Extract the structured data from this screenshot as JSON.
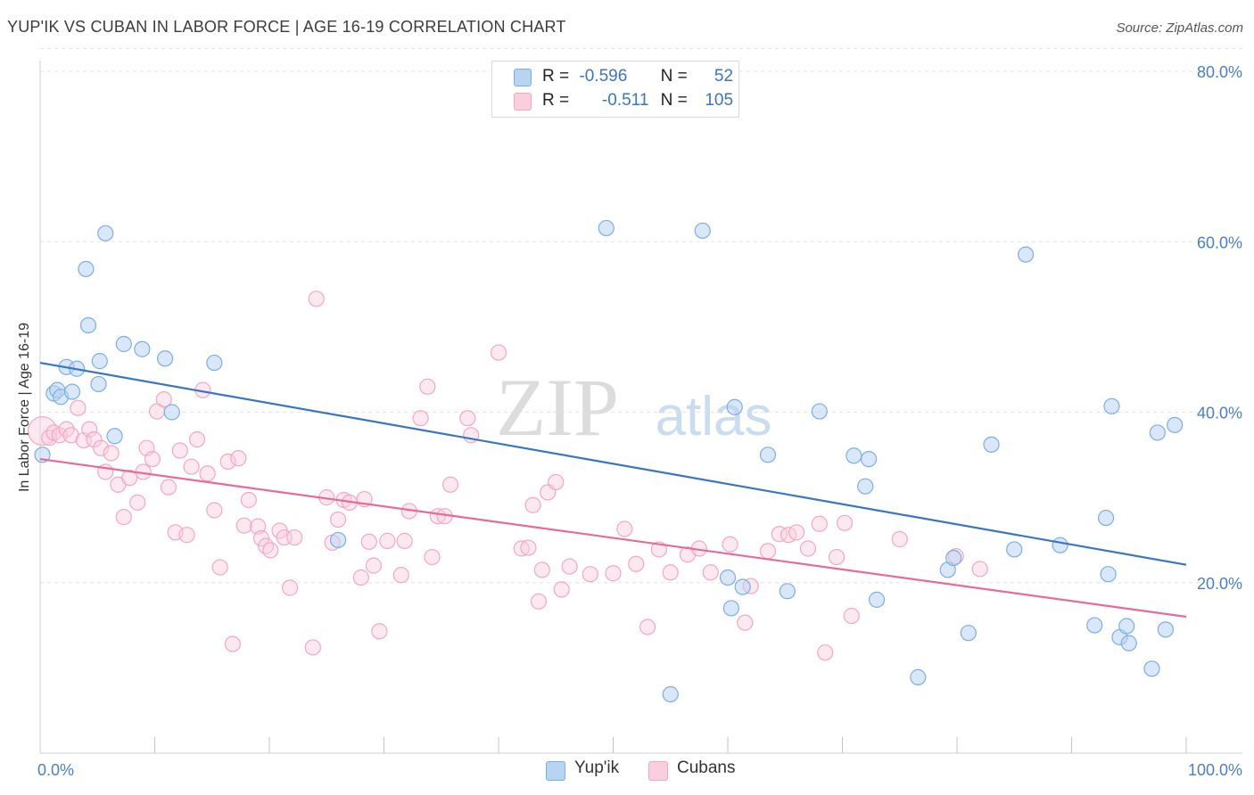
{
  "title": "YUP'IK VS CUBAN IN LABOR FORCE | AGE 16-19 CORRELATION CHART",
  "source": "Source: ZipAtlas.com",
  "watermark": {
    "zip": "ZIP",
    "atlas": "atlas"
  },
  "legend": {
    "r_label": "R =",
    "n_label": "N =",
    "yupik": {
      "r": "-0.596",
      "n": "52"
    },
    "cubans": {
      "r": "-0.511",
      "n": "105"
    }
  },
  "chart_data": {
    "type": "scatter",
    "title": "YUP'IK VS CUBAN IN LABOR FORCE | AGE 16-19 CORRELATION CHART",
    "xlabel": "",
    "ylabel": "In Labor Force | Age 16-19",
    "xlim": [
      0,
      100
    ],
    "ylim": [
      0,
      83
    ],
    "x_tick_labels": [
      "0.0%",
      "100.0%"
    ],
    "y_ticks": [
      20,
      40,
      60,
      80
    ],
    "y_tick_labels": [
      "20.0%",
      "40.0%",
      "60.0%",
      "80.0%"
    ],
    "grid": "horizontal dashed",
    "legend_position": "top-center and bottom-center",
    "colors": {
      "yupik": "#7aaee8",
      "cubans": "#f4a6c0",
      "yupik_line": "#3a75c4",
      "cubans_line": "#e76a9a",
      "axis_text": "#4a7fc8"
    },
    "series": [
      {
        "name": "Yup'ik",
        "trend": {
          "x": [
            0,
            100
          ],
          "y": [
            45.8,
            22.1
          ]
        },
        "points": [
          [
            0.2,
            35.0
          ],
          [
            1.2,
            42.2
          ],
          [
            1.5,
            42.6
          ],
          [
            1.8,
            41.8
          ],
          [
            2.3,
            45.3
          ],
          [
            2.8,
            42.4
          ],
          [
            3.2,
            45.1
          ],
          [
            4.0,
            56.8
          ],
          [
            4.2,
            50.2
          ],
          [
            5.1,
            43.3
          ],
          [
            5.2,
            46.0
          ],
          [
            5.7,
            61.0
          ],
          [
            6.5,
            37.2
          ],
          [
            7.3,
            48.0
          ],
          [
            8.9,
            47.4
          ],
          [
            10.9,
            46.3
          ],
          [
            11.5,
            40.0
          ],
          [
            15.2,
            45.8
          ],
          [
            26.0,
            25.0
          ],
          [
            49.4,
            61.6
          ],
          [
            55.0,
            6.9
          ],
          [
            57.8,
            61.3
          ],
          [
            60.0,
            20.6
          ],
          [
            60.3,
            17.0
          ],
          [
            60.6,
            40.6
          ],
          [
            61.3,
            19.5
          ],
          [
            63.5,
            35.0
          ],
          [
            65.2,
            19.0
          ],
          [
            68.0,
            40.1
          ],
          [
            71.0,
            34.9
          ],
          [
            72.0,
            31.3
          ],
          [
            72.3,
            34.5
          ],
          [
            73.0,
            18.0
          ],
          [
            76.6,
            8.9
          ],
          [
            79.2,
            21.5
          ],
          [
            79.7,
            22.9
          ],
          [
            81.0,
            14.1
          ],
          [
            83.0,
            36.2
          ],
          [
            85.0,
            23.9
          ],
          [
            86.0,
            58.5
          ],
          [
            89.0,
            24.4
          ],
          [
            92.0,
            15.0
          ],
          [
            93.0,
            27.6
          ],
          [
            93.2,
            21.0
          ],
          [
            93.5,
            40.7
          ],
          [
            94.2,
            13.6
          ],
          [
            94.8,
            14.9
          ],
          [
            95.0,
            12.9
          ],
          [
            97.0,
            9.9
          ],
          [
            97.5,
            37.6
          ],
          [
            98.2,
            14.5
          ],
          [
            99.0,
            38.5
          ]
        ]
      },
      {
        "name": "Cubans",
        "trend": {
          "x": [
            0,
            100
          ],
          "y": [
            34.5,
            16.0
          ]
        },
        "points": [
          [
            0.2,
            37.8
          ],
          [
            0.8,
            37.0
          ],
          [
            1.2,
            37.6
          ],
          [
            1.7,
            37.3
          ],
          [
            2.3,
            38.0
          ],
          [
            2.7,
            37.3
          ],
          [
            3.3,
            40.5
          ],
          [
            3.8,
            36.7
          ],
          [
            4.3,
            38.0
          ],
          [
            4.7,
            36.8
          ],
          [
            5.3,
            35.8
          ],
          [
            5.7,
            33.0
          ],
          [
            6.2,
            35.2
          ],
          [
            6.8,
            31.5
          ],
          [
            7.3,
            27.7
          ],
          [
            7.8,
            32.3
          ],
          [
            8.5,
            29.4
          ],
          [
            9.0,
            33.0
          ],
          [
            9.3,
            35.8
          ],
          [
            9.8,
            34.5
          ],
          [
            10.2,
            40.1
          ],
          [
            10.8,
            41.5
          ],
          [
            11.2,
            31.2
          ],
          [
            11.8,
            25.9
          ],
          [
            12.2,
            35.5
          ],
          [
            12.8,
            25.6
          ],
          [
            13.2,
            33.6
          ],
          [
            13.7,
            36.8
          ],
          [
            14.2,
            42.6
          ],
          [
            14.6,
            32.8
          ],
          [
            15.2,
            28.5
          ],
          [
            15.7,
            21.8
          ],
          [
            16.4,
            34.2
          ],
          [
            16.8,
            12.8
          ],
          [
            17.3,
            34.6
          ],
          [
            17.8,
            26.7
          ],
          [
            18.2,
            29.7
          ],
          [
            19.0,
            26.6
          ],
          [
            19.3,
            25.2
          ],
          [
            19.7,
            24.3
          ],
          [
            20.1,
            23.8
          ],
          [
            20.9,
            26.1
          ],
          [
            21.3,
            25.3
          ],
          [
            21.8,
            19.4
          ],
          [
            22.2,
            25.3
          ],
          [
            23.8,
            12.4
          ],
          [
            24.1,
            53.3
          ],
          [
            25.0,
            30.0
          ],
          [
            25.5,
            24.7
          ],
          [
            26.0,
            27.4
          ],
          [
            26.5,
            29.7
          ],
          [
            27.0,
            29.4
          ],
          [
            28.0,
            20.6
          ],
          [
            28.3,
            29.8
          ],
          [
            28.7,
            24.8
          ],
          [
            29.1,
            22.0
          ],
          [
            29.6,
            14.3
          ],
          [
            30.3,
            24.9
          ],
          [
            31.5,
            20.9
          ],
          [
            31.8,
            24.9
          ],
          [
            32.2,
            28.4
          ],
          [
            33.2,
            39.3
          ],
          [
            33.8,
            43.0
          ],
          [
            34.2,
            23.0
          ],
          [
            34.7,
            27.8
          ],
          [
            35.3,
            27.8
          ],
          [
            35.8,
            31.5
          ],
          [
            37.3,
            39.3
          ],
          [
            37.6,
            37.3
          ],
          [
            40.0,
            47.0
          ],
          [
            42.0,
            24.0
          ],
          [
            42.6,
            24.1
          ],
          [
            43.0,
            29.1
          ],
          [
            43.5,
            17.8
          ],
          [
            43.8,
            21.5
          ],
          [
            44.3,
            30.6
          ],
          [
            45.0,
            31.8
          ],
          [
            45.5,
            19.2
          ],
          [
            46.2,
            21.9
          ],
          [
            48.0,
            21.0
          ],
          [
            50.0,
            21.1
          ],
          [
            51.0,
            26.3
          ],
          [
            52.0,
            22.2
          ],
          [
            53.0,
            14.8
          ],
          [
            54.0,
            23.9
          ],
          [
            55.0,
            21.2
          ],
          [
            56.5,
            23.3
          ],
          [
            57.5,
            24.0
          ],
          [
            58.5,
            21.2
          ],
          [
            60.2,
            24.5
          ],
          [
            61.5,
            15.3
          ],
          [
            62.0,
            19.6
          ],
          [
            63.5,
            23.7
          ],
          [
            64.5,
            25.7
          ],
          [
            65.3,
            25.6
          ],
          [
            66.0,
            25.9
          ],
          [
            67.0,
            24.0
          ],
          [
            68.0,
            26.9
          ],
          [
            68.5,
            11.8
          ],
          [
            69.5,
            23.0
          ],
          [
            70.2,
            27.0
          ],
          [
            70.8,
            16.1
          ],
          [
            75.0,
            25.1
          ],
          [
            79.9,
            23.1
          ],
          [
            82.0,
            21.6
          ]
        ]
      }
    ]
  }
}
